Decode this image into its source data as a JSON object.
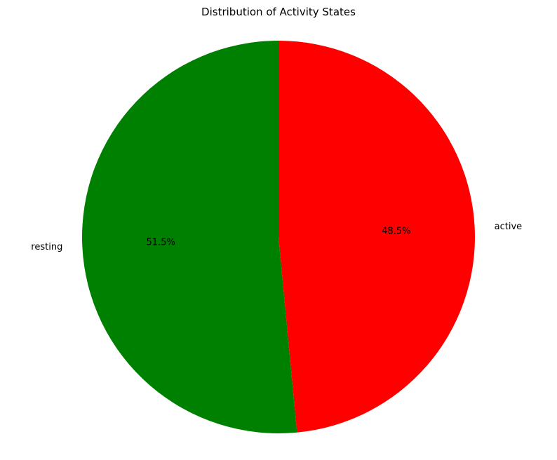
{
  "chart_data": {
    "type": "pie",
    "title": "Distribution of Activity States",
    "slices": [
      {
        "label": "active",
        "value": 48.5,
        "pct_label": "48.5%",
        "color": "#ff0000"
      },
      {
        "label": "resting",
        "value": 51.5,
        "pct_label": "51.5%",
        "color": "#008000"
      }
    ],
    "start_angle_deg": 90,
    "direction": "clockwise"
  }
}
